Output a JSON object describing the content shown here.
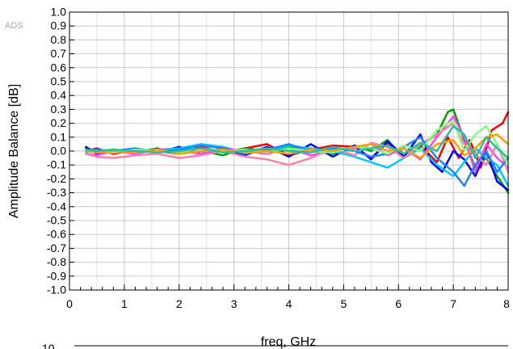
{
  "watermark": "ADS",
  "next_plot_fragment": "10",
  "chart_data": {
    "type": "line",
    "title": "",
    "xlabel": "freq, GHz",
    "ylabel": "Amplitude Balance [dB]",
    "xlim": [
      0,
      8
    ],
    "ylim": [
      -1.0,
      1.0
    ],
    "grid": true,
    "legend": "none",
    "x_ticks": [
      0,
      1,
      2,
      3,
      4,
      5,
      6,
      7,
      8
    ],
    "x_tick_labels": [
      "0",
      "1",
      "2",
      "3",
      "4",
      "5",
      "6",
      "7",
      "8"
    ],
    "y_ticks": [
      1.0,
      0.9,
      0.8,
      0.7,
      0.6,
      0.5,
      0.4,
      0.3,
      0.2,
      0.1,
      0.0,
      -0.1,
      -0.2,
      -0.3,
      -0.4,
      -0.5,
      -0.6,
      -0.7,
      -0.8,
      -0.9,
      -1.0
    ],
    "y_tick_labels": [
      "1.0",
      "0.9",
      "0.8",
      "0.7",
      "0.6",
      "0.5",
      "0.4",
      "0.3",
      "0.2",
      "0.1",
      "0.0",
      "-0.1",
      "-0.2",
      "-0.3",
      "-0.4",
      "-0.5",
      "-0.6",
      "-0.7",
      "-0.8",
      "-0.9",
      "-1.0"
    ],
    "series": [
      {
        "color": "#ff0000",
        "x": [
          0.3,
          0.5,
          0.8,
          1.2,
          1.6,
          2.0,
          2.4,
          2.8,
          3.2,
          3.6,
          4.0,
          4.4,
          4.8,
          5.2,
          5.5,
          5.8,
          6.1,
          6.4,
          6.7,
          6.9,
          7.1,
          7.3,
          7.5,
          7.7,
          7.9,
          8.0
        ],
        "y": [
          0.0,
          0.02,
          -0.02,
          0.01,
          0.0,
          -0.02,
          0.03,
          -0.01,
          0.02,
          0.05,
          -0.03,
          0.01,
          0.04,
          0.03,
          -0.05,
          0.06,
          -0.02,
          0.04,
          -0.08,
          0.1,
          -0.05,
          0.08,
          -0.12,
          0.15,
          0.2,
          0.28
        ]
      },
      {
        "color": "#00a000",
        "x": [
          0.3,
          0.5,
          0.8,
          1.2,
          1.6,
          2.0,
          2.4,
          2.8,
          3.2,
          3.6,
          4.0,
          4.4,
          4.8,
          5.2,
          5.5,
          5.8,
          6.1,
          6.4,
          6.7,
          6.9,
          7.0,
          7.2,
          7.4,
          7.6,
          7.8,
          8.0
        ],
        "y": [
          0.02,
          0.0,
          0.01,
          -0.01,
          0.02,
          -0.02,
          0.0,
          -0.03,
          0.02,
          0.0,
          0.03,
          0.0,
          -0.02,
          0.04,
          0.0,
          0.08,
          -0.05,
          0.04,
          0.12,
          0.28,
          0.3,
          0.08,
          -0.12,
          -0.05,
          -0.18,
          -0.3
        ]
      },
      {
        "color": "#0000ff",
        "x": [
          0.3,
          0.5,
          0.8,
          1.2,
          1.6,
          2.0,
          2.4,
          2.8,
          3.2,
          3.6,
          4.0,
          4.4,
          4.8,
          5.2,
          5.5,
          5.8,
          6.1,
          6.4,
          6.6,
          6.8,
          7.0,
          7.2,
          7.4,
          7.6,
          7.8,
          8.0
        ],
        "y": [
          0.03,
          -0.02,
          0.0,
          0.02,
          -0.01,
          0.03,
          -0.02,
          0.01,
          -0.03,
          0.03,
          -0.04,
          0.05,
          -0.04,
          0.04,
          -0.06,
          0.07,
          -0.04,
          0.12,
          -0.08,
          -0.15,
          0.0,
          -0.06,
          -0.18,
          0.0,
          -0.22,
          -0.28
        ]
      },
      {
        "color": "#00c8ff",
        "x": [
          0.3,
          0.5,
          0.8,
          1.2,
          1.6,
          2.0,
          2.4,
          2.8,
          3.2,
          3.6,
          4.0,
          4.4,
          4.8,
          5.2,
          5.5,
          5.8,
          6.1,
          6.4,
          6.7,
          7.0,
          7.2,
          7.4,
          7.6,
          7.8,
          8.0
        ],
        "y": [
          -0.01,
          0.01,
          -0.01,
          0.0,
          0.01,
          0.02,
          0.05,
          0.03,
          -0.01,
          0.0,
          0.04,
          0.02,
          0.0,
          -0.04,
          -0.08,
          -0.12,
          -0.05,
          0.02,
          -0.1,
          -0.18,
          -0.08,
          0.02,
          -0.05,
          -0.1,
          -0.25
        ]
      },
      {
        "color": "#ff40ff",
        "x": [
          0.3,
          0.5,
          0.8,
          1.2,
          1.6,
          2.0,
          2.4,
          2.8,
          3.2,
          3.6,
          4.0,
          4.4,
          4.8,
          5.2,
          5.5,
          5.8,
          6.1,
          6.4,
          6.7,
          6.9,
          7.0,
          7.2,
          7.4,
          7.6,
          7.8,
          8.0
        ],
        "y": [
          -0.02,
          -0.03,
          0.0,
          -0.02,
          0.01,
          0.0,
          -0.02,
          0.02,
          0.0,
          -0.02,
          0.02,
          -0.03,
          0.0,
          0.02,
          0.05,
          -0.03,
          0.02,
          -0.06,
          0.1,
          0.2,
          0.25,
          0.1,
          -0.15,
          0.05,
          -0.05,
          -0.12
        ]
      },
      {
        "color": "#ff80a0",
        "x": [
          0.3,
          0.5,
          0.8,
          1.2,
          1.6,
          2.0,
          2.4,
          2.8,
          3.2,
          3.6,
          4.0,
          4.4,
          4.8,
          5.2,
          5.5,
          5.8,
          6.1,
          6.4,
          6.7,
          7.0,
          7.2,
          7.4,
          7.6,
          7.8,
          8.0
        ],
        "y": [
          -0.02,
          -0.04,
          -0.05,
          -0.03,
          -0.02,
          -0.05,
          -0.03,
          0.0,
          -0.04,
          -0.06,
          -0.1,
          -0.05,
          0.02,
          -0.03,
          0.06,
          0.03,
          -0.05,
          0.05,
          0.12,
          0.2,
          0.05,
          -0.02,
          -0.1,
          0.05,
          -0.15
        ]
      },
      {
        "color": "#2080ff",
        "x": [
          0.3,
          0.5,
          0.8,
          1.2,
          1.6,
          2.0,
          2.4,
          2.8,
          3.2,
          3.6,
          4.0,
          4.4,
          4.8,
          5.2,
          5.5,
          5.8,
          6.1,
          6.4,
          6.7,
          7.0,
          7.2,
          7.4,
          7.6,
          7.8,
          8.0
        ],
        "y": [
          0.0,
          0.01,
          0.0,
          0.02,
          -0.01,
          0.01,
          0.04,
          0.02,
          -0.02,
          0.01,
          0.05,
          0.0,
          0.02,
          0.0,
          -0.04,
          -0.02,
          0.03,
          0.1,
          -0.05,
          -0.15,
          -0.25,
          -0.1,
          0.0,
          -0.15,
          -0.05
        ]
      },
      {
        "color": "#80ff80",
        "x": [
          0.3,
          0.5,
          0.8,
          1.2,
          1.6,
          2.0,
          2.4,
          2.8,
          3.2,
          3.6,
          4.0,
          4.4,
          4.8,
          5.2,
          5.5,
          5.8,
          6.1,
          6.4,
          6.7,
          7.0,
          7.2,
          7.4,
          7.6,
          7.8,
          8.0
        ],
        "y": [
          0.01,
          0.0,
          -0.01,
          0.01,
          0.0,
          -0.01,
          0.02,
          0.0,
          0.01,
          -0.01,
          0.02,
          0.0,
          -0.01,
          0.03,
          0.02,
          -0.02,
          0.04,
          0.0,
          0.15,
          0.22,
          0.0,
          0.12,
          0.18,
          0.05,
          -0.1
        ]
      },
      {
        "color": "#ffa000",
        "x": [
          0.3,
          0.5,
          0.8,
          1.2,
          1.6,
          2.0,
          2.4,
          2.8,
          3.2,
          3.6,
          4.0,
          4.4,
          4.8,
          5.2,
          5.5,
          5.8,
          6.1,
          6.4,
          6.7,
          7.0,
          7.2,
          7.4,
          7.6,
          7.8,
          8.0
        ],
        "y": [
          0.0,
          -0.01,
          0.0,
          -0.01,
          0.01,
          -0.02,
          0.0,
          0.01,
          -0.01,
          0.0,
          -0.02,
          0.01,
          0.0,
          0.03,
          0.05,
          0.0,
          0.02,
          -0.05,
          0.05,
          0.08,
          -0.03,
          0.02,
          0.1,
          0.12,
          0.05
        ]
      },
      {
        "color": "#20c0a0",
        "x": [
          0.3,
          0.5,
          0.8,
          1.2,
          1.6,
          2.0,
          2.4,
          2.8,
          3.2,
          3.6,
          4.0,
          4.4,
          4.8,
          5.2,
          5.5,
          5.8,
          6.1,
          6.4,
          6.7,
          7.0,
          7.2,
          7.4,
          7.6,
          7.8,
          8.0
        ],
        "y": [
          0.01,
          0.0,
          0.01,
          0.0,
          -0.01,
          0.0,
          0.02,
          -0.01,
          0.0,
          0.02,
          0.0,
          -0.01,
          0.03,
          0.0,
          0.02,
          0.04,
          -0.02,
          0.06,
          0.0,
          0.18,
          0.12,
          -0.05,
          0.1,
          0.02,
          -0.05
        ]
      }
    ]
  }
}
